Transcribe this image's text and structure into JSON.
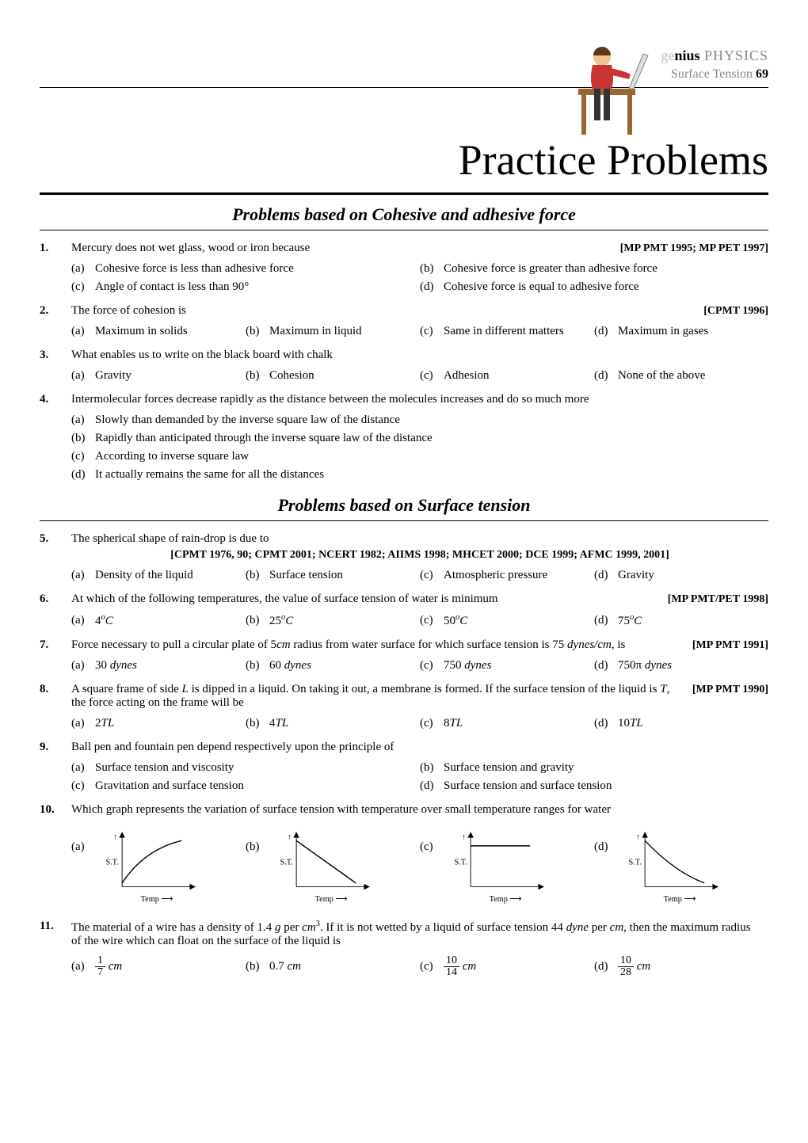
{
  "header": {
    "brand_g": "ge",
    "brand_nius": "nius",
    "brand_phy": " PHYSICS",
    "subtitle_prefix": "Surface Tension ",
    "page_num": "69"
  },
  "main_title": "Practice Problems",
  "section1": "Problems based on Cohesive and adhesive force",
  "section2": "Problems based on Surface tension",
  "icon": {
    "desk_fill": "#996633",
    "person_fill": "#cc3333",
    "head_fill": "#f4c28e"
  },
  "graphs": {
    "axis_color": "#000000",
    "curve_color": "#000000",
    "ylabel": "S.T.",
    "xlabel": "Temp",
    "arrow": "⟶"
  },
  "problems": [
    {
      "num": "1.",
      "q": "Mercury does not wet glass, wood or iron because",
      "src": "[MP PMT 1995; MP PET 1997]",
      "layout": "two",
      "opts": [
        "Cohesive force is less than adhesive force",
        "Cohesive force is greater than adhesive force",
        "Angle of contact is less than 90°",
        "Cohesive force is equal to adhesive force"
      ]
    },
    {
      "num": "2.",
      "q": "The force of cohesion is",
      "src": "[CPMT 1996]",
      "layout": "four",
      "opts": [
        "Maximum in solids",
        "Maximum in liquid",
        "Same in different matters",
        "Maximum in gases"
      ]
    },
    {
      "num": "3.",
      "q": "What enables us to write on the black board with chalk",
      "src": "",
      "layout": "four",
      "opts": [
        "Gravity",
        "Cohesion",
        "Adhesion",
        "None of the above"
      ]
    },
    {
      "num": "4.",
      "q": "Intermolecular forces decrease rapidly as the distance between the molecules increases and do so much more",
      "src": "",
      "layout": "one",
      "opts": [
        "Slowly than demanded by the inverse square law of the distance",
        "Rapidly than anticipated through the inverse square law of the distance",
        "According to inverse square law",
        "It actually remains the same for all the distances"
      ]
    },
    {
      "num": "5.",
      "q": "The spherical shape of rain-drop is due to",
      "src_center": "[CPMT 1976, 90; CPMT 2001; NCERT 1982; AIIMS 1998; MHCET 2000; DCE 1999; AFMC 1999, 2001]",
      "layout": "four",
      "opts": [
        "Density of the liquid",
        "Surface tension",
        "Atmospheric pressure",
        "Gravity"
      ]
    },
    {
      "num": "6.",
      "q": "At which of the following temperatures, the value of surface tension of water is minimum",
      "src": "[MP PMT/PET 1998]",
      "layout": "four",
      "opts_html": [
        "4<sup><span class='it'>o</span></sup><span class='it'>C</span>",
        "25<sup><span class='it'>o</span></sup><span class='it'>C</span>",
        "50<sup><span class='it'>o</span></sup><span class='it'>C</span>",
        "75<sup><span class='it'>o</span></sup><span class='it'>C</span>"
      ]
    },
    {
      "num": "7.",
      "q_html": "Force necessary to pull a circular plate of 5<span class='it'>cm</span> radius from water surface for which surface tension is 75 <span class='it'>dynes/cm</span>, is",
      "src": "[MP PMT 1991]",
      "layout": "four",
      "opts_html": [
        "30 <span class='it'>dynes</span>",
        "60 <span class='it'>dynes</span>",
        "750 <span class='it'>dynes</span>",
        "750π <span class='it'>dynes</span>"
      ]
    },
    {
      "num": "8.",
      "q_html": "A square frame of side <span class='it'>L</span> is dipped in a liquid. On taking it out, a membrane is formed. If the surface tension of the liquid is <span class='it'>T</span>, the force acting on the frame will be",
      "src": "[MP PMT 1990]",
      "layout": "four",
      "opts_html": [
        "2<span class='it'>TL</span>",
        "4<span class='it'>TL</span>",
        "8<span class='it'>TL</span>",
        "10<span class='it'>TL</span>"
      ]
    },
    {
      "num": "9.",
      "q": "Ball pen and fountain pen depend respectively upon the principle of",
      "src": "",
      "layout": "two",
      "opts": [
        "Surface tension and viscosity",
        "Surface tension and gravity",
        "Gravitation and surface tension",
        "Surface tension and surface tension"
      ]
    },
    {
      "num": "10.",
      "q": "Which graph represents the variation of surface tension with temperature over small temperature ranges for water",
      "src": "",
      "layout": "graphs"
    },
    {
      "num": "11.",
      "q_html": "The material of a wire has a density of 1.4 <span class='it'>g</span> per <span class='it'>cm</span><sup>3</sup>. If it is not wetted by a liquid of surface tension 44 <span class='it'>dyne</span> per <span class='it'>cm</span>, then the maximum radius of the wire which can float on the surface of the liquid is",
      "src": "",
      "layout": "four",
      "opts_html": [
        "<span class='frac'><span class='num'>1</span><span class='den'>7</span></span> <span class='it'>cm</span>",
        "0.7 <span class='it'>cm</span>",
        "<span class='frac'><span class='num'>10</span><span class='den'>14</span></span> <span class='it'>cm</span>",
        "<span class='frac'><span class='num'>10</span><span class='den'>28</span></span> <span class='it'>cm</span>"
      ]
    }
  ]
}
